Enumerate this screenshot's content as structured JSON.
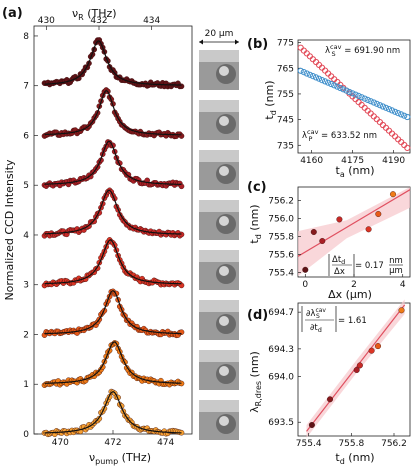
{
  "colors": {
    "panel_a_traces": [
      "#f6a133",
      "#f07c17",
      "#e85a18",
      "#dc3525",
      "#c72a27",
      "#a91f25",
      "#861a1d",
      "#5f1317"
    ],
    "panel_b_sig": "#e24a58",
    "panel_b_pump": "#3f8fcb",
    "fit_red": "#e05060",
    "band_red": "#f6c6cb",
    "fit_black": "#111111"
  },
  "image_strip": {
    "scale_label": "20 μm",
    "count": 8
  },
  "chart_data": [
    {
      "id": "a",
      "panel_label": "(a)",
      "type": "scatter",
      "xlabel": "ν_pump (THz)",
      "xlabel_main": "ν",
      "xlabel_sub": "pump",
      "xlabel_unit": " (THz)",
      "top_xlabel_main": "ν",
      "top_xlabel_sub": "R",
      "top_xlabel_unit": " (THz)",
      "ylabel": "Normalized CCD Intensity",
      "xlim": [
        469,
        475
      ],
      "ylim": [
        0,
        8.2
      ],
      "xticks": [
        470,
        472,
        474
      ],
      "top_xticks": [
        430,
        432,
        434
      ],
      "yticks": [
        0,
        1,
        2,
        3,
        4,
        5,
        6,
        7,
        8
      ],
      "series": [
        {
          "offset": 0,
          "center": 472.0,
          "width": 0.42,
          "amplitude": 0.85
        },
        {
          "offset": 1,
          "center": 472.05,
          "width": 0.4,
          "amplitude": 0.85
        },
        {
          "offset": 2,
          "center": 472.0,
          "width": 0.38,
          "amplitude": 0.88
        },
        {
          "offset": 3,
          "center": 471.9,
          "width": 0.4,
          "amplitude": 0.9
        },
        {
          "offset": 4,
          "center": 471.85,
          "width": 0.4,
          "amplitude": 0.9
        },
        {
          "offset": 5,
          "center": 471.85,
          "width": 0.38,
          "amplitude": 0.88
        },
        {
          "offset": 6,
          "center": 471.75,
          "width": 0.35,
          "amplitude": 0.9
        },
        {
          "offset": 7,
          "center": 471.45,
          "width": 0.38,
          "amplitude": 0.9
        }
      ]
    },
    {
      "id": "b",
      "panel_label": "(b)",
      "type": "line",
      "xlabel_main": "t",
      "xlabel_sub": "a",
      "xlabel_unit": " (nm)",
      "ylabel_main": "t",
      "ylabel_sub": "d",
      "ylabel_unit": " (nm)",
      "xlim": [
        4155,
        4196
      ],
      "ylim": [
        732,
        776
      ],
      "xticks": [
        4160,
        4175,
        4190
      ],
      "yticks": [
        735,
        745,
        755,
        765,
        775
      ],
      "series": [
        {
          "name_main": "λ",
          "name_sub": "S",
          "name_sup": "cav",
          "name_value": " = 691.90 nm",
          "x": [
            4156,
            4195
          ],
          "y": [
            773,
            734
          ]
        },
        {
          "name_main": "λ",
          "name_sub": "P",
          "name_sup": "cav",
          "name_value": " = 633.52 nm",
          "x": [
            4156,
            4195
          ],
          "y": [
            764,
            746
          ]
        }
      ]
    },
    {
      "id": "c",
      "panel_label": "(c)",
      "type": "scatter",
      "xlabel_main": "Δx",
      "xlabel_unit": " (μm)",
      "ylabel_main": "t",
      "ylabel_sub": "d",
      "ylabel_unit": " (nm)",
      "xlim": [
        -0.3,
        4.3
      ],
      "ylim": [
        755.35,
        756.35
      ],
      "xticks": [
        0,
        2,
        4
      ],
      "yticks": [
        755.4,
        755.6,
        755.8,
        756.0,
        756.2
      ],
      "x": [
        0.0,
        0.35,
        0.7,
        1.4,
        2.6,
        3.0,
        3.6
      ],
      "y": [
        755.43,
        755.85,
        755.75,
        755.99,
        755.88,
        756.05,
        756.27
      ],
      "fit": {
        "x": [
          -0.3,
          4.3
        ],
        "y": [
          755.58,
          756.32
        ]
      },
      "annotation": {
        "prefix_main": "Δt",
        "prefix_sub": "d",
        "denom": "Δx",
        "value": " = 0.17 ",
        "unit_num": "nm",
        "unit_den": "μm"
      }
    },
    {
      "id": "d",
      "panel_label": "(d)",
      "type": "scatter",
      "xlabel_main": "t",
      "xlabel_sub": "d",
      "xlabel_unit": " (nm)",
      "ylabel_main": "λ",
      "ylabel_sub": "R,dres",
      "ylabel_unit": " (nm)",
      "xlim": [
        755.3,
        756.35
      ],
      "ylim": [
        693.35,
        694.8
      ],
      "xticks": [
        755.4,
        755.8,
        756.2
      ],
      "yticks": [
        693.5,
        694.0,
        694.3,
        694.7
      ],
      "x": [
        755.43,
        755.6,
        755.85,
        755.88,
        755.99,
        756.05,
        756.27
      ],
      "y": [
        693.47,
        693.75,
        694.07,
        694.12,
        694.28,
        694.33,
        694.72
      ],
      "fit": {
        "x": [
          755.38,
          756.3
        ],
        "y": [
          693.4,
          694.78
        ]
      },
      "annotation": {
        "num_main": "∂λ",
        "num_sub": "S",
        "num_sup": "cav",
        "den_main": "∂t",
        "den_sub": "d",
        "value": " = 1.61"
      }
    }
  ]
}
